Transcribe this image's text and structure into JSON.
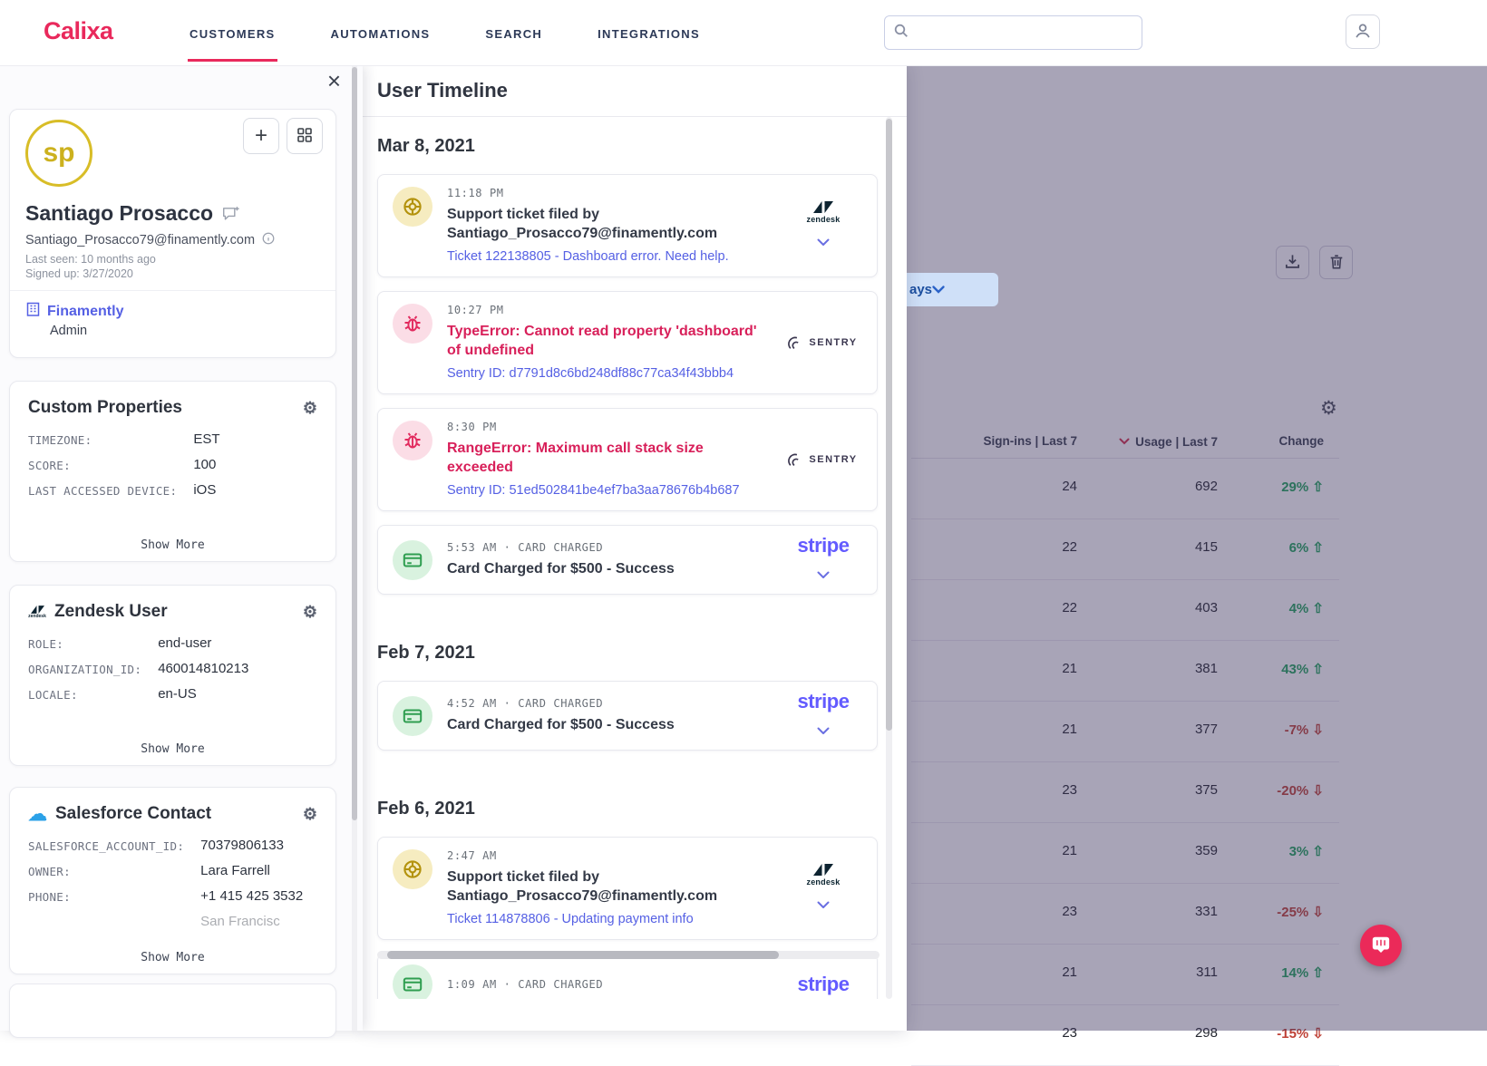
{
  "nav": {
    "brand": "Calixa",
    "items": [
      {
        "label": "CUSTOMERS",
        "active": true
      },
      {
        "label": "AUTOMATIONS",
        "active": false
      },
      {
        "label": "SEARCH",
        "active": false
      },
      {
        "label": "INTEGRATIONS",
        "active": false
      }
    ],
    "search_placeholder": ""
  },
  "profile": {
    "initials": "sp",
    "name": "Santiago Prosacco",
    "email": "Santiago_Prosacco79@finamently.com",
    "last_seen": "Last seen: 10 months ago",
    "signed_up": "Signed up: 3/27/2020",
    "company": "Finamently",
    "company_role": "Admin"
  },
  "property_cards": [
    {
      "title": "Custom Properties",
      "icon": "",
      "rows": [
        [
          "TIMEZONE:",
          "EST"
        ],
        [
          "SCORE:",
          "100"
        ],
        [
          "LAST ACCESSED DEVICE:",
          "iOS"
        ]
      ],
      "partial": "",
      "show_more": "Show More"
    },
    {
      "title": "Zendesk User",
      "icon": "zendesk",
      "rows": [
        [
          "ROLE:",
          "end-user"
        ],
        [
          "ORGANIZATION_ID:",
          "460014810213"
        ],
        [
          "LOCALE:",
          "en-US"
        ]
      ],
      "partial": "",
      "show_more": "Show More"
    },
    {
      "title": "Salesforce Contact",
      "icon": "salesforce",
      "rows": [
        [
          "SALESFORCE_ACCOUNT_ID:",
          "70379806133"
        ],
        [
          "OWNER:",
          "Lara Farrell"
        ],
        [
          "PHONE:",
          "+1 415 425 3532"
        ]
      ],
      "partial": "San Francisc",
      "show_more": "Show More"
    }
  ],
  "timeline": {
    "title": "User Timeline",
    "groups": [
      {
        "date": "Mar 8, 2021",
        "events": [
          {
            "type": "support",
            "time": "11:18 PM",
            "meta": "",
            "title": "Support ticket filed by Santiago_Prosacco79@finamently.com",
            "link": "Ticket 122138805 - Dashboard error. Need help.",
            "logo": "zendesk",
            "expand": true
          },
          {
            "type": "error",
            "time": "10:27 PM",
            "meta": "",
            "title": "TypeError: Cannot read property 'dashboard' of undefined",
            "link": "Sentry ID: d7791d8c6bd248df88c77ca34f43bbb4",
            "logo": "sentry",
            "expand": false
          },
          {
            "type": "error",
            "time": "8:30 PM",
            "meta": "",
            "title": "RangeError: Maximum call stack size exceeded",
            "link": "Sentry ID: 51ed502841be4ef7ba3aa78676b4b687",
            "logo": "sentry",
            "expand": false
          },
          {
            "type": "charge",
            "time": "5:53 AM",
            "meta": "CARD CHARGED",
            "title": "Card Charged for $500 - Success",
            "link": "",
            "logo": "stripe",
            "expand": true
          }
        ]
      },
      {
        "date": "Feb 7, 2021",
        "events": [
          {
            "type": "charge",
            "time": "4:52 AM",
            "meta": "CARD CHARGED",
            "title": "Card Charged for $500 - Success",
            "link": "",
            "logo": "stripe",
            "expand": true
          }
        ]
      },
      {
        "date": "Feb 6, 2021",
        "events": [
          {
            "type": "support",
            "time": "2:47 AM",
            "meta": "",
            "title": "Support ticket filed by Santiago_Prosacco79@finamently.com",
            "link": "Ticket 114878806 - Updating payment info",
            "logo": "zendesk",
            "expand": true
          },
          {
            "type": "charge",
            "time": "1:09 AM",
            "meta": "CARD CHARGED",
            "title": "",
            "link": "",
            "logo": "stripe",
            "expand": false
          }
        ]
      }
    ]
  },
  "background": {
    "columns": [
      "Sign-ins | Last 7",
      "Usage | Last 7",
      "Change"
    ],
    "sorted_column": "Usage | Last 7",
    "rows": [
      {
        "signins": "24",
        "usage": "692",
        "change": "29%",
        "dir": "up"
      },
      {
        "signins": "22",
        "usage": "415",
        "change": "6%",
        "dir": "up"
      },
      {
        "signins": "22",
        "usage": "403",
        "change": "4%",
        "dir": "up"
      },
      {
        "signins": "21",
        "usage": "381",
        "change": "43%",
        "dir": "up"
      },
      {
        "signins": "21",
        "usage": "377",
        "change": "-7%",
        "dir": "down"
      },
      {
        "signins": "23",
        "usage": "375",
        "change": "-20%",
        "dir": "down"
      },
      {
        "signins": "21",
        "usage": "359",
        "change": "3%",
        "dir": "up"
      },
      {
        "signins": "23",
        "usage": "331",
        "change": "-25%",
        "dir": "down"
      },
      {
        "signins": "21",
        "usage": "311",
        "change": "14%",
        "dir": "up"
      },
      {
        "signins": "23",
        "usage": "298",
        "change": "-15%",
        "dir": "down"
      }
    ],
    "filter_chip": "ays"
  },
  "colors": {
    "brand": "#e9295c",
    "link_indigo": "#5560e4",
    "error_red": "#d8205a",
    "stripe_purple": "#635bff",
    "success_green": "#2f9e50",
    "support_yellow": "#b3920c",
    "positive": "#1fa45b",
    "negative": "#bf4136"
  }
}
